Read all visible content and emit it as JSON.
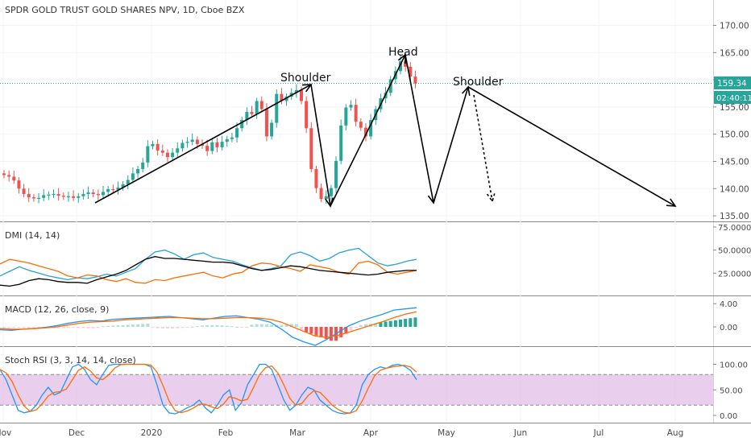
{
  "symbol_title": "SPDR GOLD TRUST GOLD SHARES NPV, 1D, Cboe BZX",
  "colors": {
    "up": "#26a69a",
    "down": "#ef5350",
    "last_price_bg": "#26a69a",
    "axis_text": "#4a4a4a",
    "grid": "#f0f3fa",
    "pattern_line": "#000000",
    "dmi_plus": "#26a0da",
    "dmi_minus": "#ff6d00",
    "adx": "#000000",
    "macd_line": "#2196f3",
    "signal_line": "#ff6d00",
    "hist_up": "#b2dfdb",
    "hist_up_strong": "#26a69a",
    "hist_down": "#ef5350",
    "hist_down_light": "#ffcdd2",
    "stoch_k": "#2196f3",
    "stoch_d": "#ff6d00",
    "stoch_band": "#e1bee7"
  },
  "price_axis": {
    "ticks": [
      "170.00",
      "165.00",
      "160.00",
      "155.00",
      "150.00",
      "145.00",
      "140.00",
      "135.00"
    ],
    "last_price": "159.34",
    "countdown": "02:40:11"
  },
  "time_axis": {
    "labels": [
      "Nov",
      "Dec",
      "2020",
      "Feb",
      "Mar",
      "Apr",
      "May",
      "Jun",
      "Jul",
      "Aug"
    ]
  },
  "annotations": {
    "left_shoulder": "Shoulder",
    "head": "Head",
    "right_shoulder": "Shoulder"
  },
  "panels": {
    "dmi": {
      "title": "DMI (14, 14)",
      "ticks": [
        "75.0000",
        "50.0000",
        "25.0000"
      ]
    },
    "macd": {
      "title": "MACD (12, 26, close, 9)",
      "ticks": [
        "4.00",
        "0.00"
      ]
    },
    "stoch": {
      "title": "Stoch RSI (3, 3, 14, 14, close)",
      "ticks": [
        "100.00",
        "50.00",
        "0.00"
      ],
      "band": [
        20,
        80
      ]
    }
  },
  "chart_data": {
    "type": "candlestick",
    "price_range": [
      134,
      173
    ],
    "close_series": [
      142.5,
      142.2,
      141.5,
      140.0,
      139.0,
      138.4,
      138.2,
      138.3,
      138.8,
      138.9,
      139.0,
      138.7,
      138.5,
      138.6,
      138.3,
      138.6,
      139.0,
      139.3,
      139.0,
      138.8,
      139.4,
      139.9,
      139.8,
      140.2,
      140.8,
      141.6,
      142.8,
      143.6,
      144.8,
      147.8,
      148.2,
      147.0,
      146.6,
      145.8,
      146.6,
      147.4,
      148.4,
      148.6,
      149.0,
      148.2,
      147.9,
      146.9,
      148.5,
      147.6,
      148.6,
      149.1,
      149.4,
      151.1,
      152.6,
      154.1,
      153.7,
      156.1,
      154.6,
      149.6,
      152.1,
      157.4,
      156.1,
      156.9,
      157.6,
      158.1,
      156.1,
      151.1,
      143.6,
      140.1,
      138.1,
      138.6,
      140.1,
      145.1,
      151.6,
      154.9,
      155.4,
      152.3,
      151.2,
      149.6,
      152.6,
      154.6,
      156.6,
      157.6,
      160.1,
      161.6,
      163.4,
      162.4,
      160.6,
      159.34
    ],
    "pattern_points": {
      "left_shoulder_peak": [
        "Mar",
        160.0
      ],
      "head_peak": [
        "Apr",
        165.0
      ],
      "right_shoulder_peak": [
        "May",
        158.5
      ],
      "neckline_lows": [
        137.0,
        137.8
      ]
    },
    "dmi_range": [
      0,
      75
    ],
    "macd_range": [
      -3.5,
      4.5
    ],
    "stoch_range": [
      0,
      100
    ]
  }
}
